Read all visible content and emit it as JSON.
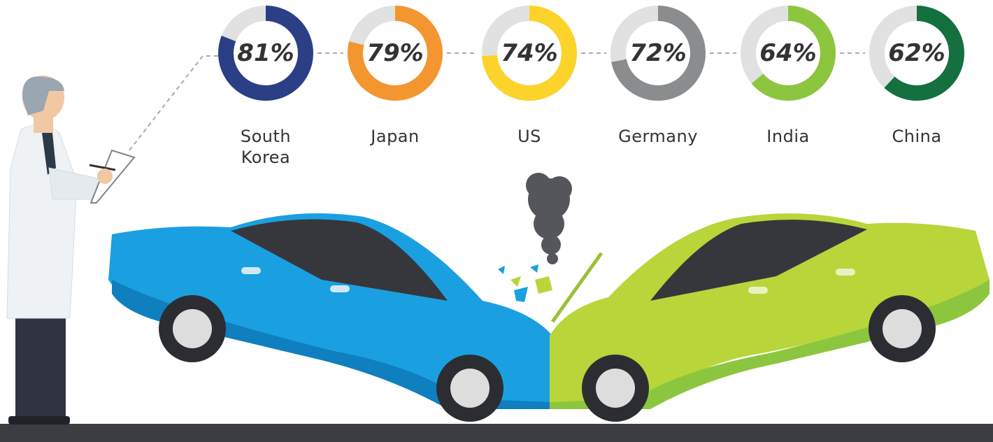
{
  "chart_data": {
    "type": "donut",
    "categories": [
      "South Korea",
      "Japan",
      "US",
      "Germany",
      "India",
      "China"
    ],
    "values": [
      81,
      79,
      74,
      72,
      64,
      62
    ],
    "value_labels": [
      "81%",
      "79%",
      "74%",
      "72%",
      "64%",
      "62%"
    ],
    "colors": [
      "#2b3f87",
      "#f4962f",
      "#fcd32a",
      "#8a8c8e",
      "#8cc63f",
      "#14703f"
    ],
    "ylim": [
      0,
      100
    ]
  }
}
